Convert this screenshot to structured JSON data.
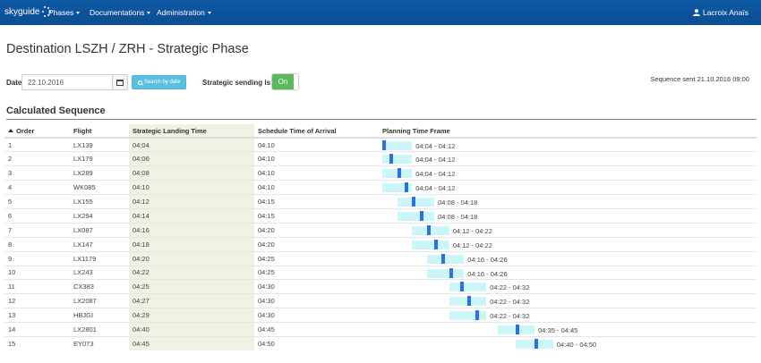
{
  "navbar": {
    "brand": "skyguide",
    "menus": [
      {
        "label": "Phases"
      },
      {
        "label": "Documentations"
      },
      {
        "label": "Administration"
      }
    ],
    "user": "Lacroix Anaïs"
  },
  "page_title": "Destination LSZH / ZRH - Strategic Phase",
  "filter": {
    "date_label": "Date",
    "date_value": "22.10.2016",
    "search_button": "Search by date",
    "strategic_label": "Strategic sending is:",
    "toggle_state": "On",
    "sequence_sent": "Sequence sent 21.10.2016 09:00"
  },
  "section_title": "Calculated Sequence",
  "table": {
    "headers": [
      "Order",
      "Flight",
      "Strategic Landing Time",
      "Schedule Time of Arrival",
      "Planning Time Frame"
    ],
    "rows": [
      {
        "order": "1",
        "flight": "LX139",
        "slt": "04:04",
        "sta": "04:10",
        "ptf": "04:04 - 04:12"
      },
      {
        "order": "2",
        "flight": "LX179",
        "slt": "04:06",
        "sta": "04:10",
        "ptf": "04:04 - 04:12"
      },
      {
        "order": "3",
        "flight": "LX289",
        "slt": "04:08",
        "sta": "04:10",
        "ptf": "04:04 - 04:12"
      },
      {
        "order": "4",
        "flight": "WK085",
        "slt": "04:10",
        "sta": "04:10",
        "ptf": "04:04 - 04:12"
      },
      {
        "order": "5",
        "flight": "LX155",
        "slt": "04:12",
        "sta": "04:15",
        "ptf": "04:08 - 04:18"
      },
      {
        "order": "6",
        "flight": "LX294",
        "slt": "04:14",
        "sta": "04:15",
        "ptf": "04:08 - 04:18"
      },
      {
        "order": "7",
        "flight": "LX087",
        "slt": "04:16",
        "sta": "04:20",
        "ptf": "04:12 - 04:22"
      },
      {
        "order": "8",
        "flight": "LX147",
        "slt": "04:18",
        "sta": "04:20",
        "ptf": "04:12 - 04:22"
      },
      {
        "order": "9",
        "flight": "LX1179",
        "slt": "04:20",
        "sta": "04:25",
        "ptf": "04:16 - 04:26"
      },
      {
        "order": "10",
        "flight": "LX243",
        "slt": "04:22",
        "sta": "04:25",
        "ptf": "04:16 - 04:26"
      },
      {
        "order": "11",
        "flight": "CX383",
        "slt": "04:25",
        "sta": "04:30",
        "ptf": "04:22 - 04:32"
      },
      {
        "order": "12",
        "flight": "LX2087",
        "slt": "04:27",
        "sta": "04:30",
        "ptf": "04:22 - 04:32"
      },
      {
        "order": "13",
        "flight": "HBJGI",
        "slt": "04:29",
        "sta": "04:30",
        "ptf": "04:22 - 04:32"
      },
      {
        "order": "14",
        "flight": "LX2801",
        "slt": "04:40",
        "sta": "04:45",
        "ptf": "04:35 - 04:45"
      },
      {
        "order": "15",
        "flight": "EY073",
        "slt": "04:45",
        "sta": "04:50",
        "ptf": "04:40 - 04:50"
      }
    ]
  },
  "colors": {
    "navbar": "#0d53a0",
    "search_button": "#5bc0de",
    "toggle_on": "#5cb85c",
    "slt_column": "#eef2e2",
    "frame_bar": "#ccf5fa",
    "frame_marker": "#2f6fe0"
  },
  "icons": [
    "skyguide-logo-icon",
    "chevron-down-icon",
    "user-icon",
    "calendar-icon",
    "search-icon",
    "sort-ascending-icon"
  ]
}
